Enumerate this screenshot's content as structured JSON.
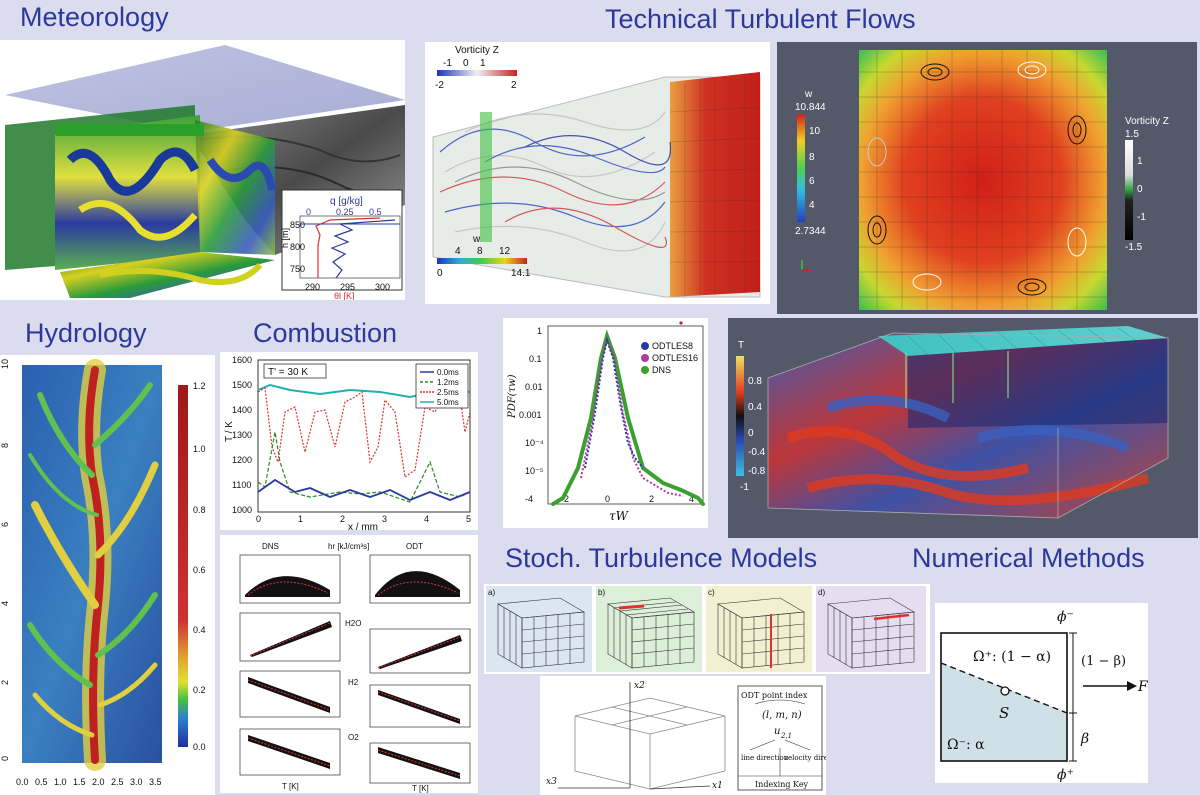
{
  "sections": {
    "meteorology": "Meteorology",
    "technical": "Technical Turbulent Flows",
    "hydrology": "Hydrology",
    "combustion": "Combustion",
    "stochastic": "Stoch. Turbulence Models",
    "numerical": "Numerical Methods"
  },
  "meteo_profile": {
    "top_label": "q [g/kg]",
    "top_ticks": [
      "0",
      "0.25",
      "0.5"
    ],
    "y_label": "h [m]",
    "y_ticks": [
      "850",
      "800",
      "750"
    ],
    "bottom_ticks": [
      "290",
      "295",
      "300"
    ],
    "bottom_label": "θl [K]"
  },
  "vorticity_3d": {
    "title": "Vorticity Z",
    "top_ticks": [
      "-1",
      "0",
      "1"
    ],
    "bottom_ticks": [
      "-2",
      "2"
    ],
    "w_label": "w",
    "w_ticks": [
      "4",
      "8",
      "12"
    ],
    "w_bottom": [
      "0",
      "14.1"
    ]
  },
  "cross_section": {
    "w_label": "w",
    "w_ticks": [
      "10.844",
      "10",
      "8",
      "6",
      "4",
      "2.7344"
    ],
    "vort_label": "Vorticity Z",
    "vort_ticks": [
      "1.5",
      "1",
      "0",
      "-1",
      "-1.5"
    ]
  },
  "hydrology_map": {
    "x_ticks": [
      "0.0",
      "0.5",
      "1.0",
      "1.5",
      "2.0",
      "2.5",
      "3.0",
      "3.5"
    ],
    "y_ticks": [
      "10",
      "8",
      "6",
      "4",
      "2",
      "0"
    ],
    "colorbar_ticks": [
      "1.2",
      "1.0",
      "0.8",
      "0.6",
      "0.4",
      "0.2",
      "0.0"
    ]
  },
  "combustion_plot": {
    "annotation": "T' = 30 K",
    "y_label": "T / K",
    "x_label": "x / mm",
    "y_ticks": [
      "1600",
      "1500",
      "1400",
      "1300",
      "1200",
      "1100",
      "1000"
    ],
    "x_ticks": [
      "0",
      "1",
      "2",
      "3",
      "4",
      "5"
    ],
    "legend": [
      "0.0ms",
      "1.2ms",
      "2.5ms",
      "5.0ms"
    ],
    "legend_colors": [
      "#2b3aa0",
      "#2a8a2a",
      "#e03030",
      "#20b0b0"
    ]
  },
  "scatter_grid": {
    "col_left": "DNS",
    "col_mid": "hr [kJ/cm³s]",
    "col_right": "ODT",
    "rows": [
      "H2O",
      "H2",
      "O2"
    ],
    "x_label": "T [K]"
  },
  "pdf_plot": {
    "y_label": "PDF(τw)",
    "x_label": "τW",
    "y_ticks": [
      "1",
      "0.1",
      "0.01",
      "0.001",
      "10⁻⁴",
      "10⁻⁵"
    ],
    "x_ticks": [
      "-4",
      "-2",
      "0",
      "2",
      "4"
    ],
    "legend": [
      "ODTLES8",
      "ODTLES16",
      "DNS"
    ],
    "legend_colors": [
      "#2b3aa0",
      "#b03aa0",
      "#3aa030"
    ]
  },
  "temperature_3d": {
    "title": "T",
    "ticks": [
      "0.8",
      "0.4",
      "0",
      "-0.4",
      "-0.8",
      "-1"
    ]
  },
  "odt_panels": {
    "labels": [
      "a)",
      "b)",
      "c)",
      "d)"
    ]
  },
  "odt_diagram": {
    "axes": [
      "x2",
      "x3",
      "x1"
    ],
    "key_title": "ODT point index",
    "key_index": "(l, m, n)",
    "key_var": "u",
    "key_sub": "2,1",
    "key_left": "line direction",
    "key_right": "velocity direction",
    "key_footer": "Indexing Key"
  },
  "numerical_diagram": {
    "phi_top": "ϕ⁻",
    "phi_bottom": "ϕ⁺",
    "omega_plus": "Ω⁺: (1 − α)",
    "omega_minus": "Ω⁻: α",
    "one_minus_beta": "(1 − β)",
    "beta": "β",
    "s_label": "S",
    "f_label": "F"
  }
}
